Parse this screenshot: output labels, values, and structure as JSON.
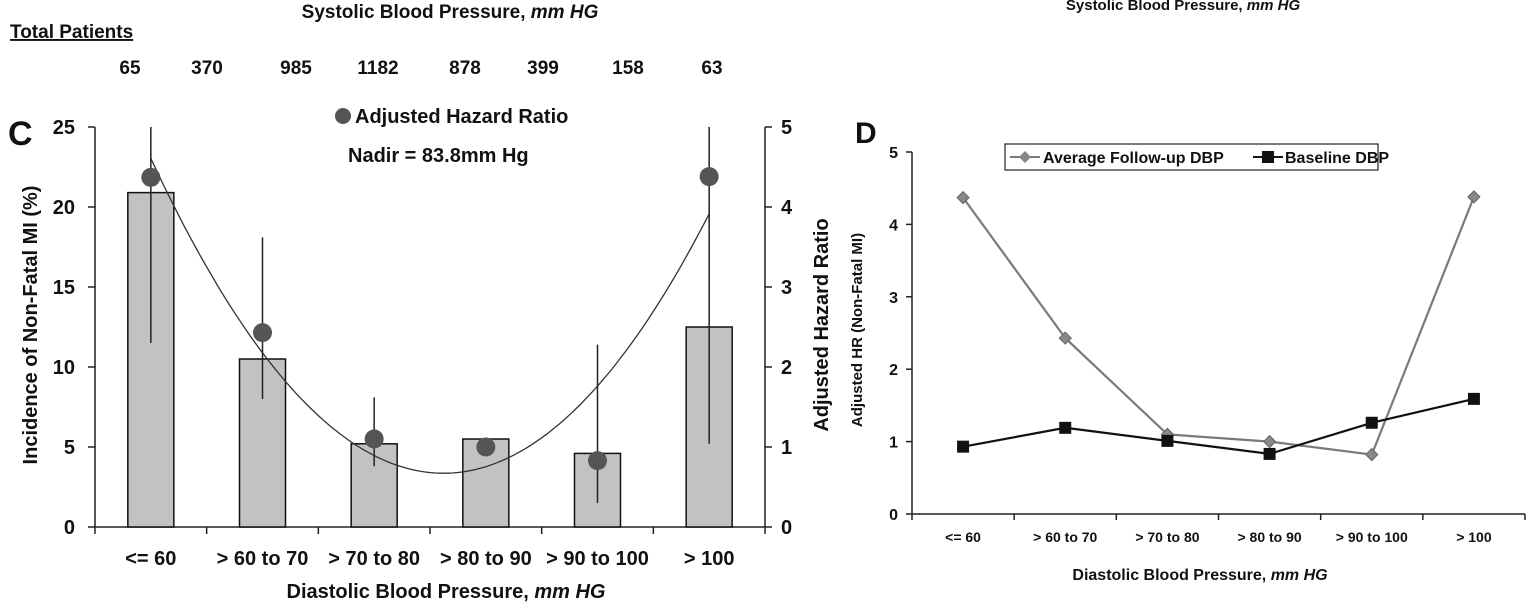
{
  "top_titles": {
    "left": "Systolic Blood Pressure, ",
    "left_italic": "mm HG",
    "right": "Systolic Blood Pressure, ",
    "right_italic": "mm HG"
  },
  "total_patients": {
    "label": "Total Patients",
    "values": [
      "65",
      "370",
      "985",
      "1182",
      "878",
      "399",
      "158",
      "63"
    ]
  },
  "chart_data": [
    {
      "type": "bar",
      "panel_label": "C",
      "categories": [
        "<= 60",
        "> 60 to 70",
        "> 70 to 80",
        "> 80 to 90",
        "> 90 to 100",
        "> 100"
      ],
      "values": [
        20.9,
        10.5,
        5.2,
        5.5,
        4.6,
        12.5
      ],
      "error_low": [
        11.5,
        8.0,
        3.8,
        null,
        1.5,
        5.2
      ],
      "error_high": [
        25.0,
        18.1,
        8.1,
        null,
        11.4,
        25.0
      ],
      "ylabel": "Incidence of Non-Fatal MI (%)",
      "ylim": [
        0,
        25
      ],
      "yticks": [
        "0",
        "5",
        "10",
        "15",
        "20",
        "25"
      ],
      "y2label": "Adjusted Hazard Ratio",
      "y2lim": [
        0,
        5
      ],
      "y2ticks": [
        "0",
        "1",
        "2",
        "3",
        "4",
        "5"
      ],
      "hazard_ratio_points": [
        4.37,
        2.43,
        1.1,
        1.0,
        0.83,
        4.38
      ],
      "xlabel": "Diastolic Blood Pressure, ",
      "xlabel_italic": "mm HG",
      "legend": "Adjusted Hazard Ratio",
      "annotation": "Nadir = 83.8mm Hg",
      "colors": {
        "bar": "#c2c2c2",
        "point": "#555555"
      }
    },
    {
      "type": "line",
      "panel_label": "D",
      "categories": [
        "<= 60",
        "> 60 to 70",
        "> 70 to 80",
        "> 80 to 90",
        "> 90 to 100",
        "> 100"
      ],
      "series": [
        {
          "name": "Average Follow-up DBP",
          "values": [
            4.37,
            2.43,
            1.1,
            1.0,
            0.82,
            4.38
          ],
          "color": "#7a7a7a",
          "marker": "diamond"
        },
        {
          "name": "Baseline DBP",
          "values": [
            0.93,
            1.19,
            1.01,
            0.83,
            1.26,
            1.59
          ],
          "color": "#111111",
          "marker": "square"
        }
      ],
      "ylabel": "Adjusted HR (Non-Fatal MI)",
      "ylim": [
        0,
        5
      ],
      "yticks": [
        "0",
        "1",
        "2",
        "3",
        "4",
        "5"
      ],
      "xlabel": "Diastolic Blood Pressure, ",
      "xlabel_italic": "mm HG",
      "legend_position": "top"
    }
  ]
}
